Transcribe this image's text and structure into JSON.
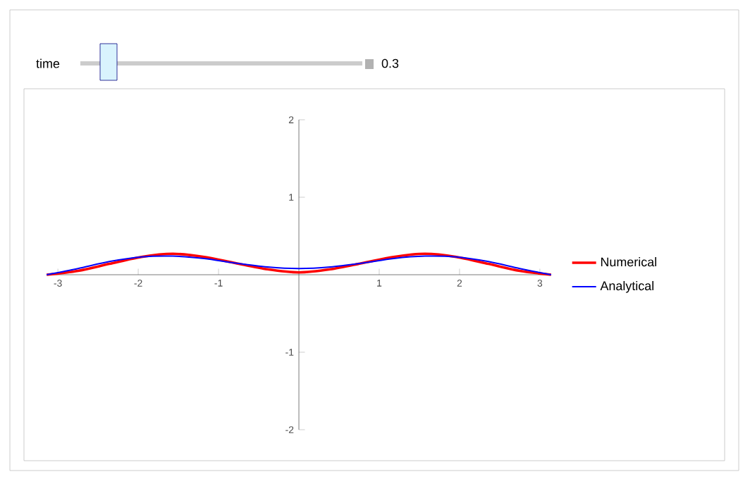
{
  "chart_data": {
    "type": "line",
    "x": [
      -3.14,
      -2.75,
      -2.36,
      -1.96,
      -1.57,
      -1.18,
      -0.79,
      -0.39,
      0,
      0.39,
      0.79,
      1.18,
      1.57,
      1.96,
      2.36,
      2.75,
      3.14
    ],
    "series": [
      {
        "name": "Numerical",
        "color": "#ff0000",
        "values": [
          0,
          0.05,
          0.14,
          0.23,
          0.27,
          0.23,
          0.15,
          0.07,
          0.03,
          0.07,
          0.15,
          0.23,
          0.27,
          0.23,
          0.14,
          0.05,
          0
        ]
      },
      {
        "name": "Analytical",
        "color": "#0000ff",
        "values": [
          0,
          0.08,
          0.17,
          0.23,
          0.24,
          0.21,
          0.15,
          0.1,
          0.08,
          0.1,
          0.15,
          0.21,
          0.24,
          0.23,
          0.17,
          0.08,
          0
        ]
      }
    ],
    "xlim": [
      -3.14159,
      3.14159
    ],
    "ylim": [
      -2,
      2
    ],
    "xticks": [
      -3,
      -2,
      -1,
      1,
      2,
      3
    ],
    "yticks": [
      -2,
      -1,
      1,
      2
    ],
    "grid": false,
    "legend": "right",
    "marker": "none",
    "line_style": "solid",
    "annotations": [
      "time",
      "0.3"
    ]
  }
}
